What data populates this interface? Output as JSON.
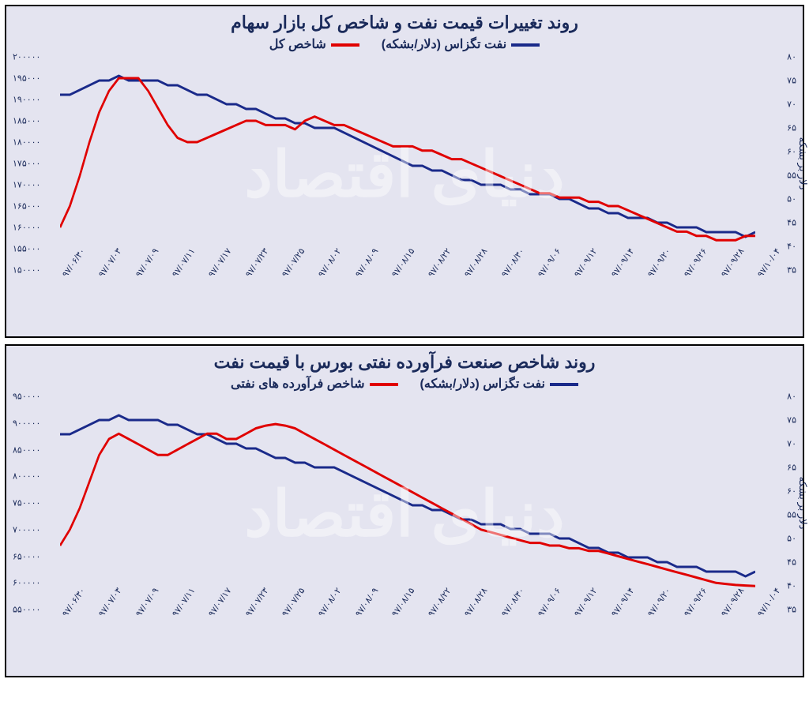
{
  "charts": [
    {
      "title": "روند تغییرات قیمت نفت و شاخص کل بازار سهام",
      "watermark": "دنیای اقتصاد",
      "legend": [
        {
          "label": "نفت تگزاس (دلار/بشکه)",
          "color": "#1a2a8a"
        },
        {
          "label": "شاخص کل",
          "color": "#e00000"
        }
      ],
      "background_color": "#e4e4f0",
      "x_labels": [
        "۹۷/۰۶/۳۰",
        "۹۷/۰۷/۰۳",
        "۹۷/۰۷/۰۹",
        "۹۷/۰۷/۱۱",
        "۹۷/۰۷/۱۷",
        "۹۷/۰۷/۲۳",
        "۹۷/۰۷/۲۵",
        "۹۷/۰۸/۰۲",
        "۹۷/۰۸/۰۹",
        "۹۷/۰۸/۱۵",
        "۹۷/۰۸/۲۲",
        "۹۷/۰۸/۲۸",
        "۹۷/۰۸/۳۰",
        "۹۷/۰۹/۰۶",
        "۹۷/۰۹/۱۲",
        "۹۷/۰۹/۱۴",
        "۹۷/۰۹/۲۰",
        "۹۷/۰۹/۲۶",
        "۹۷/۰۹/۲۸",
        "۹۷/۱۰/۰۴"
      ],
      "left_axis": {
        "min": 150000,
        "max": 200000,
        "ticks": [
          150000,
          155000,
          160000,
          165000,
          170000,
          175000,
          180000,
          185000,
          190000,
          195000,
          200000
        ],
        "tick_labels": [
          "۱۵۰۰۰۰",
          "۱۵۵۰۰۰",
          "۱۶۰۰۰۰",
          "۱۶۵۰۰۰",
          "۱۷۰۰۰۰",
          "۱۷۵۰۰۰",
          "۱۸۰۰۰۰",
          "۱۸۵۰۰۰",
          "۱۹۰۰۰۰",
          "۱۹۵۰۰۰",
          "۲۰۰۰۰۰"
        ]
      },
      "right_axis": {
        "label": "دلار بر بشکه",
        "min": 35,
        "max": 80,
        "ticks": [
          35,
          40,
          45,
          50,
          55,
          60,
          65,
          70,
          75,
          80
        ],
        "tick_labels": [
          "۳۵",
          "۴۰",
          "۴۵",
          "۵۰",
          "۵۵",
          "۶۰",
          "۶۵",
          "۷۰",
          "۷۵",
          "۸۰"
        ]
      },
      "series": [
        {
          "axis": "right",
          "color": "#1a2a8a",
          "width": 3,
          "values": [
            72,
            72,
            73,
            74,
            75,
            75,
            76,
            75,
            75,
            75,
            75,
            74,
            74,
            73,
            72,
            72,
            71,
            70,
            70,
            69,
            69,
            68,
            67,
            67,
            66,
            66,
            65,
            65,
            65,
            64,
            63,
            62,
            61,
            60,
            59,
            58,
            57,
            57,
            56,
            56,
            55,
            54,
            54,
            53,
            53,
            53,
            52,
            52,
            51,
            51,
            51,
            50,
            50,
            49,
            48,
            48,
            47,
            47,
            46,
            46,
            46,
            45,
            45,
            44,
            44,
            44,
            43,
            43,
            43,
            43,
            42,
            43
          ]
        },
        {
          "axis": "left",
          "color": "#e00000",
          "width": 3,
          "values": [
            160000,
            165000,
            172000,
            180000,
            187000,
            192000,
            195000,
            195000,
            195000,
            192000,
            188000,
            184000,
            181000,
            180000,
            180000,
            181000,
            182000,
            183000,
            184000,
            185000,
            185000,
            184000,
            184000,
            184000,
            183000,
            185000,
            186000,
            185000,
            184000,
            184000,
            183000,
            182000,
            181000,
            180000,
            179000,
            179000,
            179000,
            178000,
            178000,
            177000,
            176000,
            176000,
            175000,
            174000,
            173000,
            172000,
            171000,
            170000,
            169000,
            168000,
            168000,
            167000,
            167000,
            167000,
            166000,
            166000,
            165000,
            165000,
            164000,
            163000,
            162000,
            161000,
            160000,
            159000,
            159000,
            158000,
            158000,
            157000,
            157000,
            157000,
            158000,
            158000
          ]
        }
      ]
    },
    {
      "title": "روند شاخص صنعت فرآورده نفتی بورس با قیمت نفت",
      "watermark": "دنیای اقتصاد",
      "legend": [
        {
          "label": "نفت تگزاس (دلار/بشکه)",
          "color": "#1a2a8a"
        },
        {
          "label": "شاخص فرآورده های نفتی",
          "color": "#e00000"
        }
      ],
      "background_color": "#e4e4f0",
      "x_labels": [
        "۹۷/۰۶/۳۰",
        "۹۷/۰۷/۰۳",
        "۹۷/۰۷/۰۹",
        "۹۷/۰۷/۱۱",
        "۹۷/۰۷/۱۷",
        "۹۷/۰۷/۲۳",
        "۹۷/۰۷/۲۵",
        "۹۷/۰۸/۰۲",
        "۹۷/۰۸/۰۹",
        "۹۷/۰۸/۱۵",
        "۹۷/۰۸/۲۲",
        "۹۷/۰۸/۲۸",
        "۹۷/۰۸/۳۰",
        "۹۷/۰۹/۰۶",
        "۹۷/۰۹/۱۲",
        "۹۷/۰۹/۱۴",
        "۹۷/۰۹/۲۰",
        "۹۷/۰۹/۲۶",
        "۹۷/۰۹/۲۸",
        "۹۷/۱۰/۰۴"
      ],
      "left_axis": {
        "min": 550000,
        "max": 950000,
        "ticks": [
          550000,
          600000,
          650000,
          700000,
          750000,
          800000,
          850000,
          900000,
          950000
        ],
        "tick_labels": [
          "۵۵۰۰۰۰",
          "۶۰۰۰۰۰",
          "۶۵۰۰۰۰",
          "۷۰۰۰۰۰",
          "۷۵۰۰۰۰",
          "۸۰۰۰۰۰",
          "۸۵۰۰۰۰",
          "۹۰۰۰۰۰",
          "۹۵۰۰۰۰"
        ]
      },
      "right_axis": {
        "label": "دلار بر بشکه",
        "min": 35,
        "max": 80,
        "ticks": [
          35,
          40,
          45,
          50,
          55,
          60,
          65,
          70,
          75,
          80
        ],
        "tick_labels": [
          "۳۵",
          "۴۰",
          "۴۵",
          "۵۰",
          "۵۵",
          "۶۰",
          "۶۵",
          "۷۰",
          "۷۵",
          "۸۰"
        ]
      },
      "series": [
        {
          "axis": "right",
          "color": "#1a2a8a",
          "width": 3,
          "values": [
            72,
            72,
            73,
            74,
            75,
            75,
            76,
            75,
            75,
            75,
            75,
            74,
            74,
            73,
            72,
            72,
            71,
            70,
            70,
            69,
            69,
            68,
            67,
            67,
            66,
            66,
            65,
            65,
            65,
            64,
            63,
            62,
            61,
            60,
            59,
            58,
            57,
            57,
            56,
            56,
            55,
            54,
            54,
            53,
            53,
            53,
            52,
            52,
            51,
            51,
            51,
            50,
            50,
            49,
            48,
            48,
            47,
            47,
            46,
            46,
            46,
            45,
            45,
            44,
            44,
            44,
            43,
            43,
            43,
            43,
            42,
            43
          ]
        },
        {
          "axis": "left",
          "color": "#e00000",
          "width": 3,
          "values": [
            670000,
            700000,
            740000,
            790000,
            840000,
            870000,
            880000,
            870000,
            860000,
            850000,
            840000,
            840000,
            850000,
            860000,
            870000,
            880000,
            880000,
            870000,
            870000,
            880000,
            890000,
            895000,
            898000,
            895000,
            890000,
            880000,
            870000,
            860000,
            850000,
            840000,
            830000,
            820000,
            810000,
            800000,
            790000,
            780000,
            770000,
            760000,
            750000,
            740000,
            730000,
            720000,
            710000,
            700000,
            695000,
            690000,
            685000,
            680000,
            675000,
            675000,
            670000,
            670000,
            665000,
            665000,
            660000,
            660000,
            655000,
            650000,
            645000,
            640000,
            635000,
            630000,
            625000,
            620000,
            615000,
            610000,
            605000,
            600000,
            598000,
            596000,
            595000,
            594000
          ]
        }
      ]
    }
  ]
}
